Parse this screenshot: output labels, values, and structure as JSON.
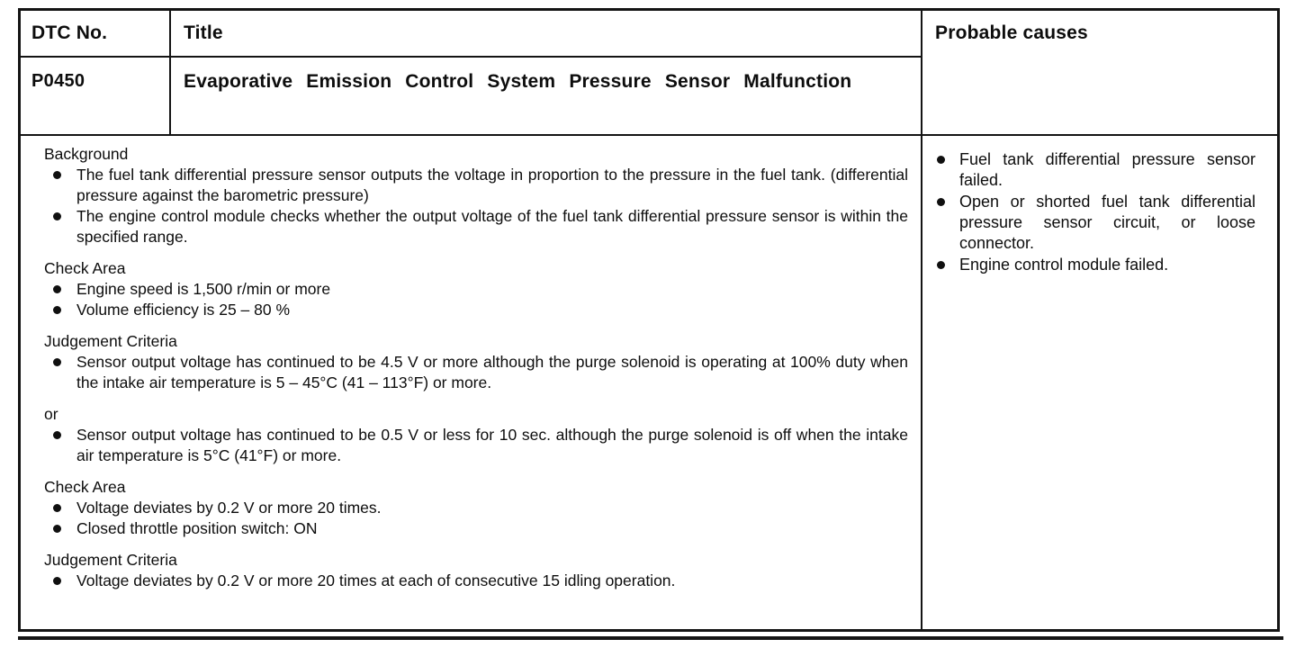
{
  "table": {
    "header": {
      "dtc_no": "DTC No.",
      "title": "Title",
      "probable_causes": "Probable causes"
    },
    "dtc": {
      "code": "P0450",
      "title": "Evaporative Emission Control System Pressure Sensor Malfunction"
    },
    "body_sections": [
      {
        "heading": "Background",
        "bullets": [
          "The fuel tank differential pressure sensor outputs the voltage in proportion to the pressure in the fuel tank. (differential pressure against the barometric pressure)",
          "The engine control module checks whether the output voltage of the fuel tank differential pressure sensor is within the specified range."
        ]
      },
      {
        "heading": "Check Area",
        "bullets": [
          "Engine speed is 1,500 r/min or more",
          "Volume efficiency is 25 – 80 %"
        ]
      },
      {
        "heading": "Judgement Criteria",
        "bullets": [
          "Sensor output voltage has continued to be 4.5 V or more although the purge solenoid is operating at 100% duty when the intake air temperature is 5 – 45°C (41 – 113°F) or more."
        ]
      },
      {
        "heading": "or",
        "bullets": [
          "Sensor output voltage has continued to be 0.5 V or less for 10 sec. although the purge solenoid is off when the intake air temperature is 5°C (41°F) or more."
        ]
      },
      {
        "heading": "Check Area",
        "bullets": [
          "Voltage deviates by 0.2 V or more 20 times.",
          "Closed throttle position switch: ON"
        ]
      },
      {
        "heading": "Judgement Criteria",
        "bullets": [
          "Voltage deviates by 0.2 V or more 20 times at each of consecutive 15 idling operation."
        ]
      }
    ],
    "probable_causes": [
      "Fuel tank differential pressure sensor failed.",
      "Open or shorted fuel tank differential pressure sensor circuit, or loose connector.",
      "Engine control module failed."
    ]
  }
}
